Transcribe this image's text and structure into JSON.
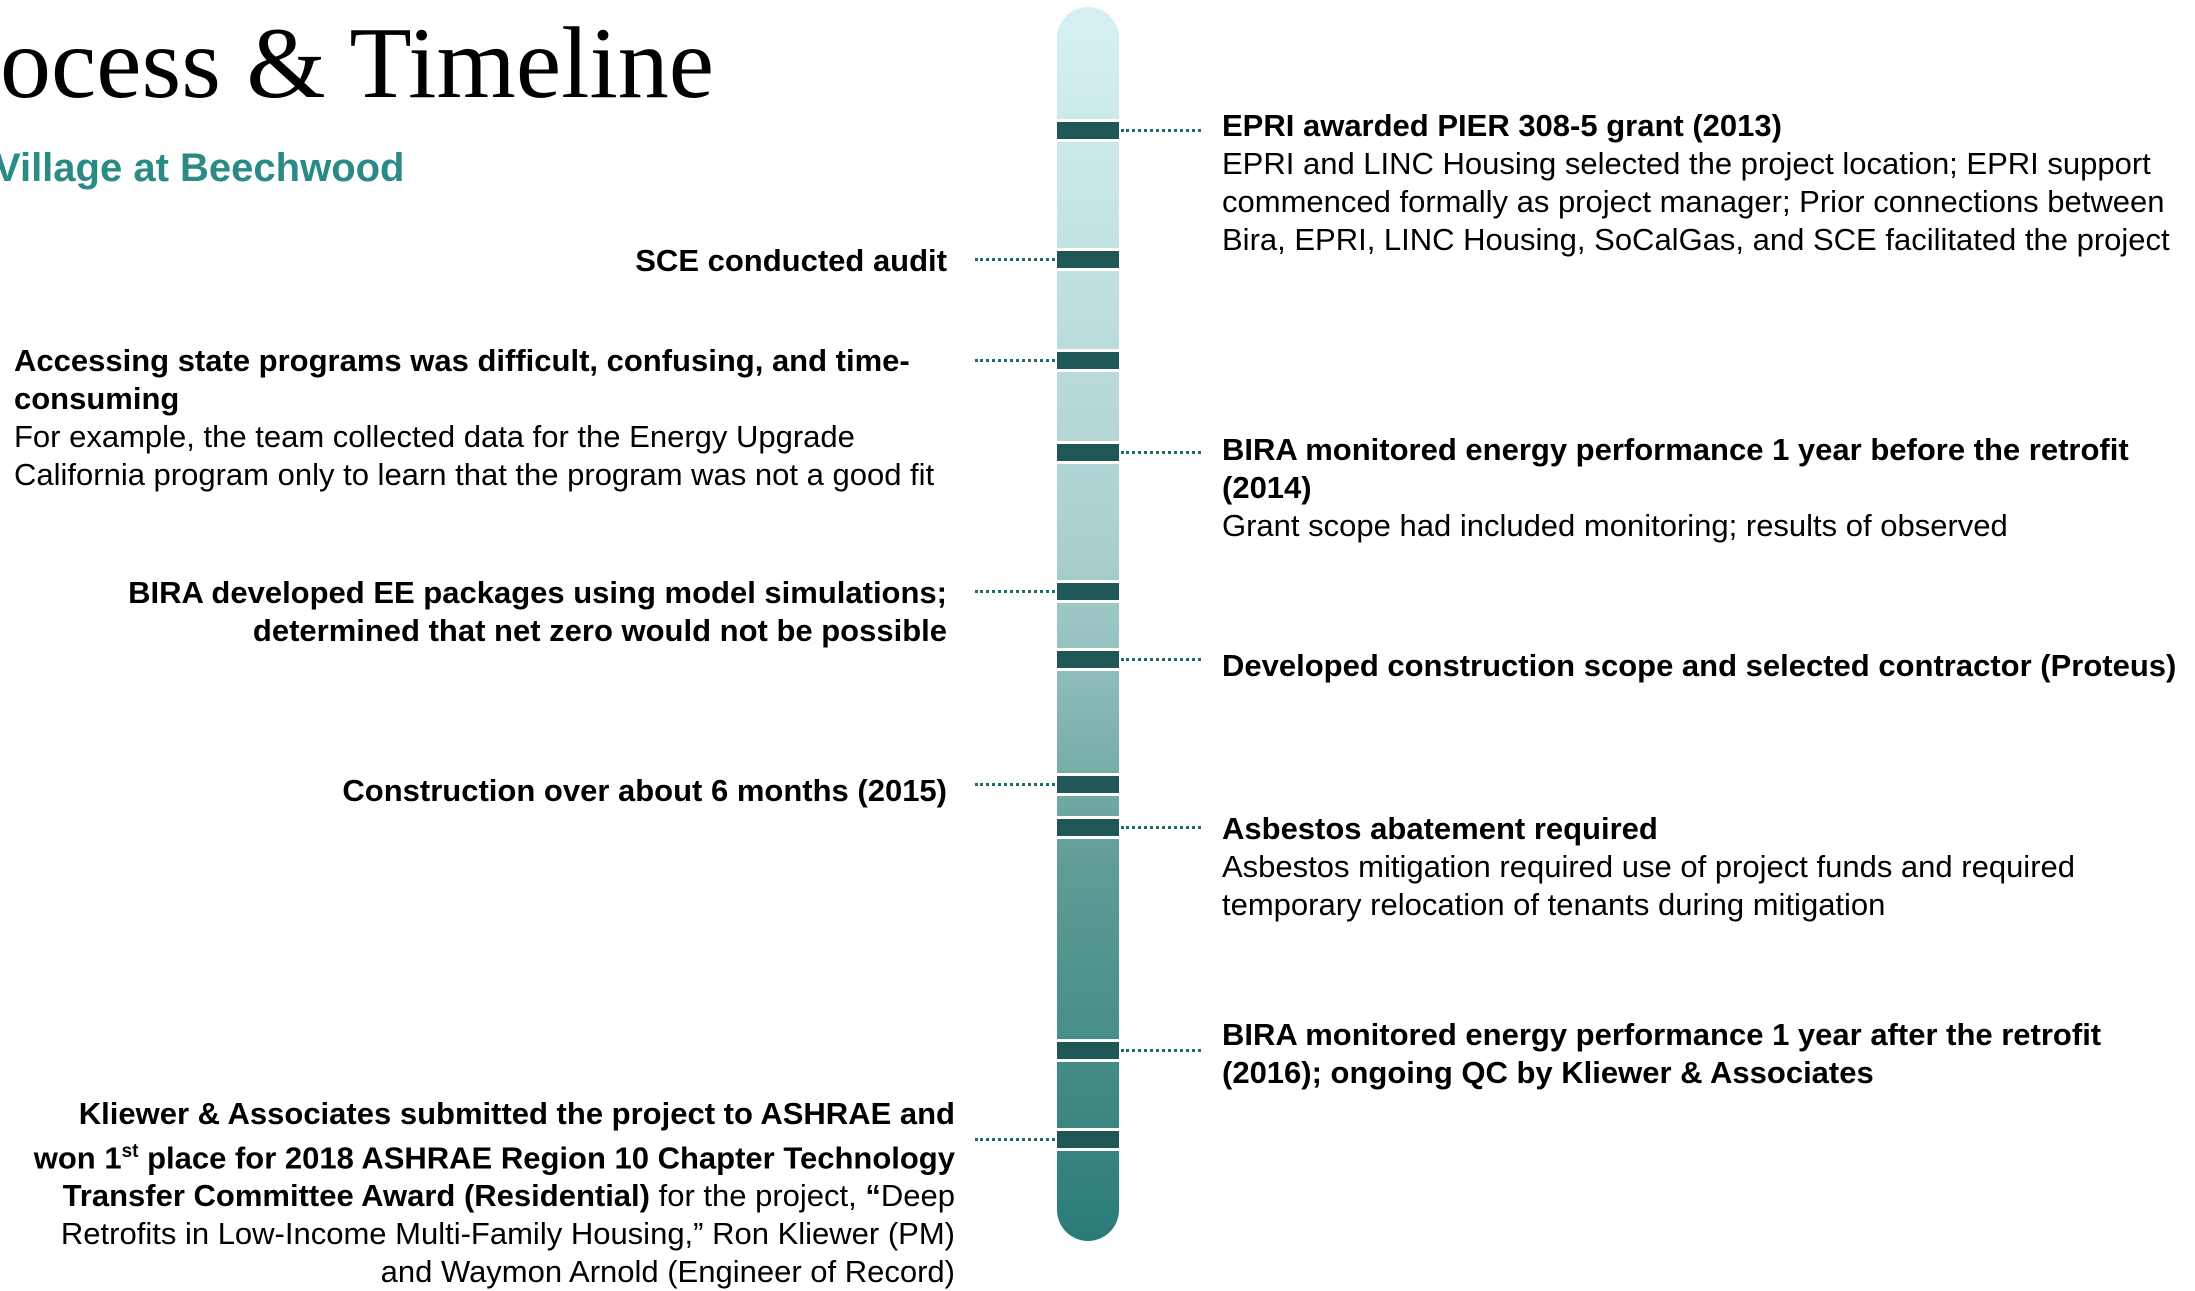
{
  "header": {
    "title": "ocess & Timeline",
    "subtitle": "Village at Beechwood"
  },
  "left_events": [
    {
      "title": "SCE conducted audit"
    },
    {
      "title": "Accessing state programs was difficult, confusing, and time-consuming",
      "body": "For example, the team collected data for the Energy Upgrade California program only to learn that the program was not a good fit"
    },
    {
      "title": "BIRA developed EE packages using model simulations; determined that net zero would not be possible"
    },
    {
      "title": "Construction over about 6 months (2015)"
    },
    {
      "parts": [
        {
          "text": "Kliewer & Associates submitted the project to ASHRAE and won 1",
          "style": "bold"
        },
        {
          "text": "st",
          "style": "sup"
        },
        {
          "text": " place for 2018 ASHRAE Region 10 Chapter Technology Transfer Committee Award (Residential)",
          "style": "bold"
        },
        {
          "text": " for the project, ",
          "style": "normal"
        },
        {
          "text": "“",
          "style": "bold"
        },
        {
          "text": "Deep Retrofits in Low-Income Multi-Family Housing,” Ron Kliewer (PM) and Waymon Arnold (Engineer of Record)",
          "style": "normal"
        }
      ]
    }
  ],
  "right_events": [
    {
      "title": "EPRI awarded PIER 308-5 grant (2013)",
      "body": "EPRI and LINC Housing selected the project location; EPRI support commenced formally as project manager; Prior connections between Bira, EPRI, LINC Housing, SoCalGas, and SCE facilitated the project"
    },
    {
      "title": "BIRA monitored energy performance 1 year before the retrofit (2014)",
      "body": "Grant scope had included monitoring; results of observed"
    },
    {
      "title": "Developed construction scope and selected contractor (Proteus)"
    },
    {
      "title": "Asbestos abatement required",
      "body": "Asbestos mitigation required use of project funds and required temporary relocation of tenants during mitigation"
    },
    {
      "title": "BIRA monitored energy performance 1 year after the retrofit (2016); ongoing QC by Kliewer & Associates"
    }
  ]
}
